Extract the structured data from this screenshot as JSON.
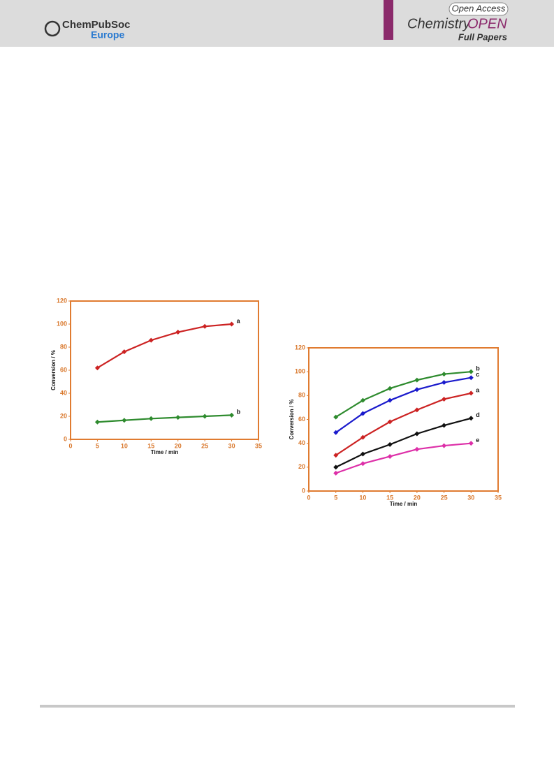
{
  "header": {
    "publisher": "ChemPubSoc",
    "region": "Europe",
    "access": "Open Access",
    "journal_name": "Chemistry",
    "journal_suffix": "OPEN",
    "section": "Full Papers"
  },
  "chart_data": [
    {
      "type": "line",
      "x_label": "Time / min",
      "y_label": "Conversion / %",
      "x": [
        5,
        10,
        15,
        20,
        25,
        30
      ],
      "series": [
        {
          "name": "a",
          "color": "#cc2222",
          "values": [
            62,
            76,
            86,
            93,
            98,
            100
          ]
        },
        {
          "name": "b",
          "color": "#2e8b2e",
          "values": [
            15,
            16.5,
            18,
            19,
            20,
            21
          ]
        }
      ],
      "xlim": [
        0,
        35
      ],
      "xticks": [
        0,
        5,
        10,
        15,
        20,
        25,
        30,
        35
      ],
      "ylim": [
        0,
        120
      ],
      "yticks": [
        0,
        20,
        40,
        60,
        80,
        100,
        120
      ]
    },
    {
      "type": "line",
      "x_label": "Time / min",
      "y_label": "Conversion / %",
      "x": [
        5,
        10,
        15,
        20,
        25,
        30
      ],
      "series": [
        {
          "name": "b",
          "color": "#2e8b2e",
          "values": [
            62,
            76,
            86,
            93,
            98,
            100
          ]
        },
        {
          "name": "c",
          "color": "#1a1acc",
          "values": [
            49,
            65,
            76,
            85,
            91,
            95
          ]
        },
        {
          "name": "a",
          "color": "#cc2222",
          "values": [
            30,
            45,
            58,
            68,
            77,
            82
          ]
        },
        {
          "name": "d",
          "color": "#111111",
          "values": [
            20,
            31,
            39,
            48,
            55,
            61
          ]
        },
        {
          "name": "e",
          "color": "#dd2fa8",
          "values": [
            15,
            23,
            29,
            35,
            38,
            40
          ]
        }
      ],
      "xlim": [
        0,
        35
      ],
      "xticks": [
        0,
        5,
        10,
        15,
        20,
        25,
        30,
        35
      ],
      "ylim": [
        0,
        120
      ],
      "yticks": [
        0,
        20,
        40,
        60,
        80,
        100,
        120
      ]
    }
  ]
}
